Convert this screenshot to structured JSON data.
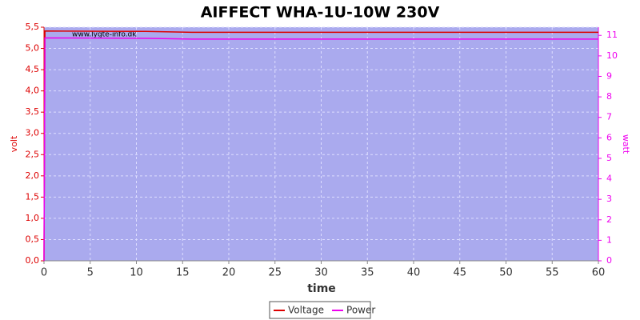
{
  "chart_data": {
    "type": "line",
    "title": "AIFFECT WHA-1U-10W 230V",
    "xlabel": "time",
    "ylabel": "volt",
    "y2label": "watt",
    "watermark": "www.lygte-info.dk",
    "x": [
      0,
      0.1,
      11,
      16,
      60
    ],
    "series": [
      {
        "name": "Voltage",
        "color": "#dd0000",
        "values": [
          0,
          5.41,
          5.4,
          5.38,
          5.38
        ]
      },
      {
        "name": "Power",
        "color": "#ee00ee",
        "axis": "y2",
        "values": [
          0,
          10.88,
          10.86,
          10.82,
          10.82
        ]
      }
    ],
    "xlim": [
      0,
      60
    ],
    "xticks": [
      0,
      5,
      10,
      15,
      20,
      25,
      30,
      35,
      40,
      45,
      50,
      55,
      60
    ],
    "ylim": [
      0,
      5.5
    ],
    "yticks": [
      {
        "value": 0,
        "label": "0,0"
      },
      {
        "value": 0.5,
        "label": "0,5"
      },
      {
        "value": 1,
        "label": "1,0"
      },
      {
        "value": 1.5,
        "label": "1,5"
      },
      {
        "value": 2,
        "label": "2,0"
      },
      {
        "value": 2.5,
        "label": "2,5"
      },
      {
        "value": 3,
        "label": "3,0"
      },
      {
        "value": 3.5,
        "label": "3,5"
      },
      {
        "value": 4,
        "label": "4,0"
      },
      {
        "value": 4.5,
        "label": "4,5"
      },
      {
        "value": 5,
        "label": "5,0"
      },
      {
        "value": 5.5,
        "label": "5,5"
      }
    ],
    "y2lim": [
      0,
      11.4
    ],
    "y2ticks": [
      0,
      1,
      2,
      3,
      4,
      5,
      6,
      7,
      8,
      9,
      10,
      11
    ],
    "grid": true,
    "legend": "bottom"
  }
}
